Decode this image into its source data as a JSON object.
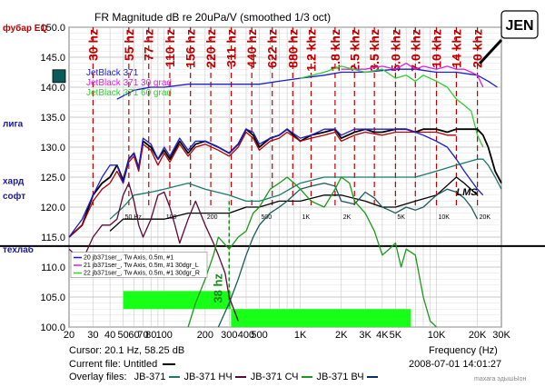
{
  "chart_data": {
    "type": "line",
    "title": "FR Magnitude dB re 20uPa/V (smoothed 1/3 oct)",
    "xlabel": "Frequency (Hz)",
    "x_scale": "log",
    "xlim": [
      20,
      30000
    ],
    "ylim": [
      100,
      150
    ],
    "ylabel": "",
    "y_ticks": [
      "100.0",
      "105.0",
      "110.0",
      "115.0",
      "120.0",
      "125.0",
      "130.0",
      "135.0",
      "140.0",
      "145.0",
      "150.0"
    ],
    "y_tick_values": [
      100,
      105,
      110,
      115,
      120,
      125,
      130,
      135,
      140,
      145,
      150
    ],
    "x_ticks": [
      "20",
      "30",
      "40",
      "50",
      "60",
      "70",
      "80",
      "100",
      "200",
      "300",
      "400",
      "500",
      "1K",
      "2K",
      "3K",
      "4K",
      "5K",
      "10K",
      "20K",
      "30K"
    ],
    "x_tick_values": [
      20,
      30,
      40,
      50,
      60,
      70,
      80,
      100,
      200,
      300,
      400,
      500,
      1000,
      2000,
      3000,
      4000,
      5000,
      10000,
      20000,
      30000
    ],
    "inner_x_ticks": [
      "50 Hz",
      "100",
      "200",
      "500",
      "1K",
      "2K",
      "5K",
      "10K",
      "20K"
    ],
    "inner_x_tick_values": [
      50,
      100,
      200,
      500,
      1000,
      2000,
      5000,
      10000,
      20000
    ],
    "grid": true,
    "side_labels": [
      {
        "text": "фубар EQ",
        "y": 150,
        "color": "#c00000"
      },
      {
        "text": "лига",
        "y": 134,
        "color": "#1a1aa0"
      },
      {
        "text": "хард",
        "y": 124.5,
        "color": "#1a1aa0"
      },
      {
        "text": "софт",
        "y": 122,
        "color": "#1a1aa0"
      },
      {
        "text": "техлаб",
        "y": 113,
        "color": "#1a1aa0"
      }
    ],
    "freq_annotations": [
      {
        "label": "30 hz",
        "f": 30
      },
      {
        "label": "55 hz",
        "f": 55
      },
      {
        "label": "77 hz",
        "f": 77
      },
      {
        "label": "110 hz",
        "f": 110
      },
      {
        "label": "156 hz",
        "f": 156
      },
      {
        "label": "220 hz",
        "f": 220
      },
      {
        "label": "311 hz",
        "f": 311
      },
      {
        "label": "440 hz",
        "f": 440
      },
      {
        "label": "622 hz",
        "f": 622
      },
      {
        "label": "880 hz",
        "f": 880
      },
      {
        "label": "1.2 khz",
        "f": 1200
      },
      {
        "label": "1.8 khz",
        "f": 1800
      },
      {
        "label": "2.5 khz",
        "f": 2500
      },
      {
        "label": "3.5 khz",
        "f": 3500
      },
      {
        "label": "5.0 khz",
        "f": 5000
      },
      {
        "label": "7.0 khz",
        "f": 7000
      },
      {
        "label": "10 khz",
        "f": 10000
      },
      {
        "label": "14 khz",
        "f": 14000
      },
      {
        "label": "20 khz",
        "f": 20000
      }
    ],
    "annotation_38hz": {
      "label": "38 hz",
      "f": 38
    },
    "legend_upper": [
      "JetBlack 371",
      "JetBlack 371 30 grad",
      "JetBlack 371 60 grad"
    ],
    "legend_lower": [
      "20 jb371ser_, Tw Axis, 0.5m, #1",
      "21 jb371ser_, Tw Axis, 0.5m, #1 30dgr_L",
      "22 jb371ser_, Tw Axis, 0.5m, #1 30dgr_R"
    ],
    "green_bars": [
      {
        "f1": 50,
        "f2": 310,
        "y1": 103,
        "y2": 106
      },
      {
        "f1": 310,
        "f2": 6500,
        "y1": 100,
        "y2": 103
      }
    ],
    "upper_series": [
      {
        "name": "JetBlack 371",
        "color": "#1c1cd0",
        "x": [
          45,
          60,
          80,
          100,
          150,
          200,
          300,
          400,
          500,
          700,
          1000,
          1500,
          2000,
          3000,
          5000,
          7000,
          10000,
          14000,
          20000,
          24000,
          28000
        ],
        "y": [
          138,
          139.5,
          140,
          140,
          140.5,
          140.5,
          140.5,
          140.5,
          140.5,
          141,
          141.5,
          142,
          142.5,
          142.5,
          143,
          143,
          142.5,
          142.5,
          142,
          141,
          140
        ]
      },
      {
        "name": "JetBlack 371 30 grad",
        "color": "#e020e0",
        "x": [
          2000,
          3000,
          4000,
          5000,
          6000,
          7000,
          8000,
          10000,
          12000,
          14000,
          16000,
          18000,
          20000,
          22000
        ],
        "y": [
          143,
          143,
          143.5,
          143,
          144,
          143,
          143.5,
          143,
          143.5,
          143,
          143,
          142.5,
          142,
          140
        ]
      },
      {
        "name": "JetBlack 371 60 grad",
        "color": "#30d030",
        "x": [
          1000,
          1500,
          2000,
          3000,
          4000,
          5000,
          6000,
          7000,
          8000,
          10000,
          12000,
          14000,
          16000,
          18000,
          20000,
          22000
        ],
        "y": [
          141.5,
          142.5,
          143.5,
          142.5,
          143,
          141.5,
          142,
          141,
          142,
          141,
          140,
          138,
          137,
          136,
          132,
          130
        ]
      }
    ],
    "series": [
      {
        "name": "main-black",
        "color": "#000000",
        "x": [
          20,
          25,
          30,
          35,
          40,
          45,
          50,
          55,
          60,
          65,
          70,
          80,
          90,
          100,
          110,
          130,
          150,
          170,
          200,
          250,
          300,
          350,
          400,
          450,
          500,
          600,
          700,
          800,
          1000,
          1200,
          1500,
          1800,
          2000,
          2500,
          3000,
          3500,
          4000,
          5000,
          6000,
          7000,
          8000,
          10000,
          12000,
          14000,
          16000,
          20000,
          22000,
          24000,
          27000,
          30000
        ],
        "y": [
          115,
          117,
          122,
          124,
          125,
          127,
          124.5,
          128,
          129,
          126.5,
          131,
          130,
          128,
          129.5,
          128,
          131,
          129,
          130.5,
          131,
          130,
          129,
          130.5,
          133,
          132,
          130,
          131.5,
          132,
          133,
          131,
          132,
          132.5,
          133,
          131.5,
          132.5,
          133,
          132.5,
          132.5,
          133,
          133,
          132.5,
          133,
          133,
          132.5,
          133,
          133,
          133,
          132,
          130,
          126,
          124
        ]
      },
      {
        "name": "dark-red",
        "color": "#b00000",
        "x": [
          20,
          25,
          30,
          35,
          40,
          45,
          50,
          55,
          60,
          65,
          70,
          80,
          90,
          100,
          110,
          130,
          150,
          170,
          200,
          250,
          300,
          350,
          400,
          450,
          500,
          600,
          700,
          800,
          1000,
          1200,
          1500,
          1800,
          2000,
          2500,
          3000,
          4000,
          5000,
          6000,
          8000,
          10000,
          12000,
          14000
        ],
        "y": [
          115,
          117,
          121,
          123,
          124,
          126,
          124,
          127.5,
          128.5,
          126,
          130.5,
          129.5,
          127,
          129,
          127.5,
          130.5,
          128.5,
          130,
          130.5,
          129.5,
          128.5,
          130,
          132.5,
          131.5,
          129.5,
          131,
          131.5,
          132.5,
          131,
          131.5,
          132,
          132.5,
          131,
          132,
          132.5,
          132,
          132.5,
          132.5,
          132.5,
          132.5,
          132,
          132
        ]
      },
      {
        "name": "blue",
        "color": "#1c1cd0",
        "x": [
          20,
          25,
          30,
          35,
          40,
          45,
          50,
          55,
          60,
          65,
          70,
          80,
          90,
          100,
          110,
          130,
          150,
          170,
          200,
          250,
          300,
          350,
          400,
          450,
          500,
          600,
          700,
          800,
          1000,
          1200,
          1500,
          1800,
          2000,
          2500,
          3000,
          4000,
          5000,
          6000,
          7000,
          8000,
          10000,
          12000,
          14000,
          16000,
          20000,
          22000
        ],
        "y": [
          115,
          118,
          122,
          125,
          127,
          127,
          124,
          128,
          129,
          126.5,
          131.5,
          130.5,
          128,
          130,
          128.5,
          131.5,
          129.5,
          131,
          131,
          130,
          129,
          130.5,
          133,
          132.5,
          130.5,
          131.5,
          132,
          133,
          131.5,
          132,
          133,
          133,
          132,
          133,
          133,
          133,
          133,
          133,
          132.5,
          132,
          131,
          130,
          128,
          126,
          123,
          122
        ]
      },
      {
        "name": "teal",
        "color": "#1a7a6a",
        "x": [
          40,
          50,
          60,
          80,
          100,
          150,
          200,
          300,
          400,
          500,
          700,
          1000,
          1500,
          2000,
          3000,
          4000,
          5000,
          7000,
          10000,
          14000,
          20000,
          22000,
          24000,
          27000,
          30000
        ],
        "y": [
          118,
          120,
          122,
          122.5,
          123,
          124,
          123,
          122,
          121,
          121,
          122,
          124,
          125,
          125,
          125,
          125,
          125,
          125,
          126,
          127,
          128,
          128,
          127,
          125,
          123
        ]
      },
      {
        "name": "woofer-black",
        "color": "#000000",
        "x": [
          40,
          50,
          60,
          80,
          100,
          150,
          200,
          300,
          400,
          500,
          700,
          1000,
          1500,
          2000,
          3000,
          4000,
          5000,
          7000,
          10000,
          14000,
          16000,
          20000
        ],
        "y": [
          116,
          118,
          118,
          118,
          118,
          119,
          119,
          119,
          120,
          120,
          121,
          121,
          122,
          122,
          121,
          120,
          120,
          121,
          122,
          125,
          124,
          122
        ]
      },
      {
        "name": "mid-teal",
        "color": "#1a5a5a",
        "x": [
          250,
          300,
          350,
          400,
          450,
          500,
          600,
          700,
          800,
          1000,
          1200,
          1500,
          1800,
          2000,
          2500,
          3000,
          3500,
          4000,
          4500,
          5000,
          6000,
          7000,
          8000,
          10000,
          12000,
          14000,
          16000,
          18000,
          20000
        ],
        "y": [
          100,
          104,
          108,
          112,
          115,
          117,
          119,
          120,
          121,
          123,
          123.5,
          124,
          123.5,
          121,
          120.5,
          122.5,
          121.5,
          120,
          119.5,
          119,
          120,
          119.5,
          120,
          122,
          123,
          122.5,
          121.5,
          120,
          118
        ]
      },
      {
        "name": "woofer-purple",
        "color": "#5a0a3a",
        "x": [
          20,
          25,
          30,
          35,
          40,
          45,
          50,
          55,
          60,
          65,
          70,
          80,
          90,
          100,
          110,
          120,
          130,
          150,
          170,
          200,
          230,
          250,
          280,
          300,
          350
        ],
        "y": [
          113,
          111,
          115,
          117,
          117,
          118,
          122,
          124,
          121,
          117,
          115,
          118,
          122,
          122.5,
          120,
          117,
          114,
          118,
          121,
          117,
          114,
          112,
          109,
          105,
          101
        ]
      },
      {
        "name": "tweeter-green",
        "color": "#1a9a1a",
        "x": [
          150,
          170,
          200,
          230,
          250,
          300,
          350,
          400,
          450,
          500,
          600,
          700,
          800,
          900,
          1000,
          1200,
          1500,
          1800,
          2000,
          2300,
          2500,
          3000,
          3500,
          4000,
          4500,
          5000,
          5500,
          6000,
          7000,
          8000,
          9000,
          10000
        ],
        "y": [
          100,
          104,
          108,
          112,
          115,
          113,
          115,
          116,
          119,
          120,
          123,
          124,
          125,
          124,
          123,
          121,
          120,
          123,
          125,
          124,
          121,
          119,
          116,
          112,
          113,
          114,
          110,
          113,
          112,
          105,
          101,
          100
        ]
      }
    ]
  },
  "chart_lines_labels": {
    "lms_logo": "LMS",
    "jen_logo": "JEN"
  },
  "status": {
    "cursor": "Cursor: 20.1 Hz, 58.25 dB",
    "current_file": "Current file: Untitled",
    "overlay_files": "Overlay files:",
    "overlays": [
      "JB-371",
      "JB-371 НЧ",
      "JB-371 СЧ",
      "JB-371 ВЧ"
    ],
    "overlay_colors": [
      "#1a7a6a",
      "#5a0a3a",
      "#1a9a1a",
      "#003366"
    ],
    "frequency_label": "Frequency (Hz)",
    "timestamp": "2008-07-01  14:01:27",
    "watermark": "maxara эдышЫон"
  }
}
